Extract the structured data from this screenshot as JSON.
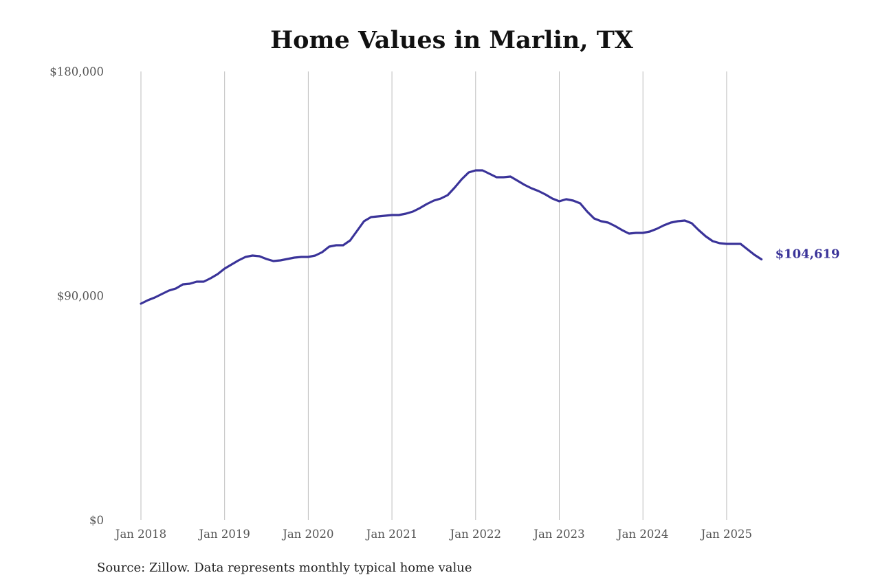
{
  "chart_data": {
    "type": "line",
    "title": "Home Values in Marlin, TX",
    "xlabel": "",
    "ylabel": "",
    "ylim": [
      0,
      180000
    ],
    "yticks": [
      0,
      90000,
      180000
    ],
    "ytick_labels": [
      "$0",
      "$90,000",
      "$180,000"
    ],
    "xticks": [
      "Jan 2018",
      "Jan 2019",
      "Jan 2020",
      "Jan 2021",
      "Jan 2022",
      "Jan 2023",
      "Jan 2024",
      "Jan 2025"
    ],
    "x_start": "Jan 2018",
    "x_end": "Jun 2025",
    "grid": "vertical",
    "line_color": "#3a3399",
    "series": [
      {
        "name": "Typical home value",
        "frequency": "monthly",
        "values": [
          86830,
          88210,
          89310,
          90690,
          92060,
          92890,
          94550,
          94820,
          95650,
          95650,
          97030,
          98680,
          100890,
          102540,
          104200,
          105580,
          106130,
          105850,
          104750,
          103920,
          104200,
          104750,
          105300,
          105580,
          105580,
          106130,
          107510,
          109710,
          110270,
          110270,
          112200,
          116060,
          119910,
          121570,
          121850,
          122120,
          122400,
          122400,
          122950,
          123780,
          125160,
          126810,
          128190,
          129010,
          130390,
          133420,
          136720,
          139480,
          140310,
          140310,
          138930,
          137550,
          137550,
          137830,
          136170,
          134520,
          133140,
          132040,
          130660,
          129010,
          127910,
          128730,
          128180,
          127080,
          123780,
          121020,
          119920,
          119370,
          117990,
          116340,
          114960,
          115230,
          115230,
          115780,
          116880,
          118260,
          119360,
          119910,
          120180,
          119080,
          116320,
          113850,
          111920,
          111090,
          110810,
          110810,
          110810,
          108610,
          106400,
          104619
        ]
      }
    ],
    "end_label": "$104,619",
    "source": "Source: Zillow. Data represents monthly typical home value"
  }
}
